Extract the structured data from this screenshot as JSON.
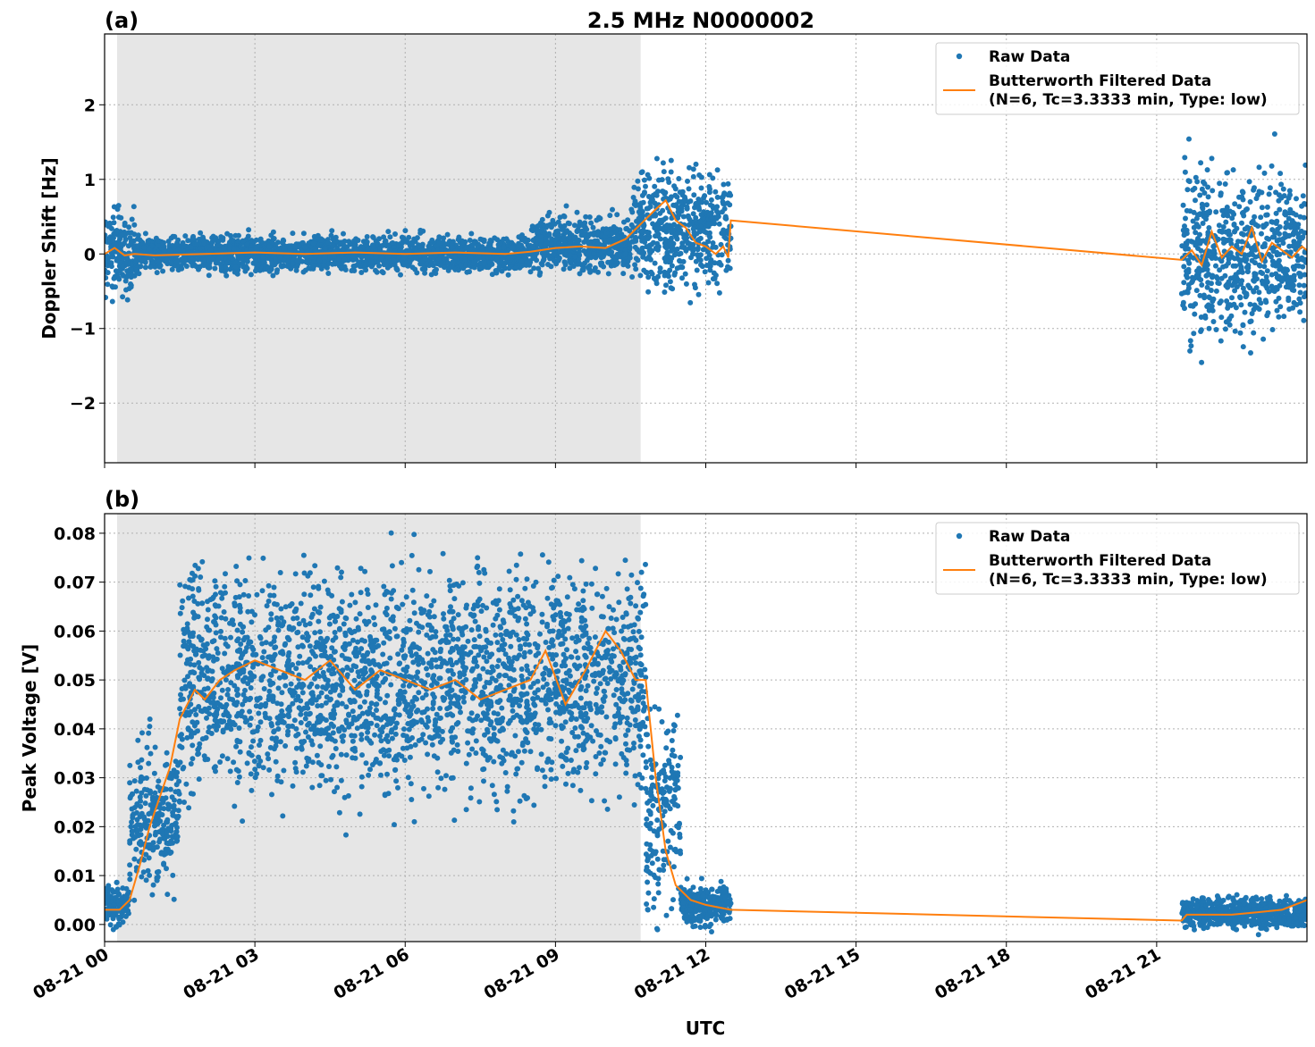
{
  "title": "2.5 MHz N0000002",
  "colors": {
    "raw": "#1f77b4",
    "filtered": "#ff7f0e",
    "shade": "#e6e6e6"
  },
  "chart_data": [
    {
      "type": "scatter",
      "panel_label": "(a)",
      "ylabel": "Doppler Shift [Hz]",
      "xlabel": "",
      "xlim": [
        0,
        24
      ],
      "ylim": [
        -2.8,
        2.95
      ],
      "yticks": [
        2,
        1,
        0,
        -1,
        -2
      ],
      "ytick_labels": [
        "2",
        "1",
        "0",
        "−1",
        "−2"
      ],
      "xticks": [
        0,
        3,
        6,
        9,
        12,
        15,
        18,
        21
      ],
      "xtick_labels": [],
      "grid": true,
      "legend_position": "top-right",
      "legend": [
        "Raw Data",
        "Butterworth Filtered Data",
        "(N=6, Tc=3.3333 min, Type: low)"
      ],
      "shaded_region": [
        0.25,
        10.7
      ],
      "raw_segments": [
        {
          "x": [
            0,
            0.6
          ],
          "center": 0.0,
          "spread": 0.55
        },
        {
          "x": [
            0.6,
            8.5
          ],
          "center": 0.0,
          "spread": 0.22
        },
        {
          "x": [
            8.5,
            10.5
          ],
          "center": 0.12,
          "spread": 0.35
        },
        {
          "x": [
            10.5,
            12.5
          ],
          "center": 0.35,
          "spread": 0.75
        },
        {
          "x": [
            21.5,
            24
          ],
          "center": 0.0,
          "spread": 1.05
        }
      ],
      "series": [
        {
          "name": "Butterworth Filtered Data",
          "x": [
            0,
            0.2,
            0.4,
            0.6,
            1,
            2,
            3,
            4,
            5,
            6,
            7,
            8,
            8.5,
            9,
            9.5,
            10,
            10.4,
            10.7,
            11,
            11.2,
            11.4,
            11.6,
            11.8,
            12,
            12.2,
            12.35,
            12.45,
            12.5,
            21.5,
            21.7,
            21.9,
            22.1,
            22.3,
            22.5,
            22.7,
            22.9,
            23.1,
            23.3,
            23.5,
            23.7,
            23.9,
            24
          ],
          "y": [
            0.0,
            0.08,
            -0.02,
            0.0,
            -0.02,
            0.0,
            0.02,
            0.0,
            0.02,
            0.0,
            0.02,
            0.0,
            0.03,
            0.08,
            0.1,
            0.08,
            0.2,
            0.4,
            0.6,
            0.72,
            0.45,
            0.35,
            0.15,
            0.1,
            0.0,
            0.1,
            -0.05,
            0.45,
            -0.08,
            0.05,
            -0.15,
            0.3,
            -0.05,
            0.1,
            0.0,
            0.35,
            -0.1,
            0.15,
            0.05,
            -0.05,
            0.1,
            0.05
          ]
        }
      ]
    },
    {
      "type": "scatter",
      "panel_label": "(b)",
      "ylabel": "Peak Voltage [V]",
      "xlabel": "UTC",
      "xlim": [
        0,
        24
      ],
      "ylim": [
        -0.0035,
        0.084
      ],
      "yticks": [
        0.08,
        0.07,
        0.06,
        0.05,
        0.04,
        0.03,
        0.02,
        0.01,
        0.0
      ],
      "ytick_labels": [
        "0.08",
        "0.07",
        "0.06",
        "0.05",
        "0.04",
        "0.03",
        "0.02",
        "0.01",
        "0.00"
      ],
      "xticks": [
        0,
        3,
        6,
        9,
        12,
        15,
        18,
        21
      ],
      "xtick_labels": [
        "08-21 00",
        "08-21 03",
        "08-21 06",
        "08-21 09",
        "08-21 12",
        "08-21 15",
        "08-21 18",
        "08-21 21"
      ],
      "grid": true,
      "legend_position": "top-right",
      "legend": [
        "Raw Data",
        "Butterworth Filtered Data",
        "(N=6, Tc=3.3333 min, Type: low)"
      ],
      "shaded_region": [
        0.25,
        10.7
      ],
      "raw_segments": [
        {
          "x": [
            0,
            0.5
          ],
          "center": 0.004,
          "spread": 0.004
        },
        {
          "x": [
            0.5,
            1.5
          ],
          "center": 0.022,
          "spread": 0.014
        },
        {
          "x": [
            1.5,
            10.8
          ],
          "center": 0.05,
          "spread": 0.022
        },
        {
          "x": [
            10.8,
            11.5
          ],
          "center": 0.022,
          "spread": 0.02
        },
        {
          "x": [
            11.5,
            12.5
          ],
          "center": 0.004,
          "spread": 0.004
        },
        {
          "x": [
            21.5,
            24
          ],
          "center": 0.0025,
          "spread": 0.003
        }
      ],
      "series": [
        {
          "name": "Butterworth Filtered Data",
          "x": [
            0,
            0.3,
            0.5,
            0.7,
            0.9,
            1.1,
            1.3,
            1.5,
            1.8,
            2,
            2.3,
            2.6,
            3,
            3.5,
            4,
            4.5,
            5,
            5.5,
            6,
            6.5,
            7,
            7.5,
            8,
            8.5,
            8.8,
            9.2,
            9.6,
            10,
            10.3,
            10.6,
            10.8,
            11,
            11.2,
            11.4,
            11.7,
            12,
            12.5,
            21.5,
            21.6,
            22,
            22.5,
            23,
            23.5,
            24
          ],
          "y": [
            0.003,
            0.003,
            0.005,
            0.012,
            0.02,
            0.026,
            0.032,
            0.042,
            0.048,
            0.046,
            0.05,
            0.052,
            0.054,
            0.052,
            0.05,
            0.054,
            0.048,
            0.052,
            0.05,
            0.048,
            0.05,
            0.046,
            0.048,
            0.05,
            0.056,
            0.045,
            0.052,
            0.06,
            0.056,
            0.05,
            0.05,
            0.03,
            0.015,
            0.008,
            0.005,
            0.004,
            0.003,
            0.0008,
            0.002,
            0.002,
            0.002,
            0.0025,
            0.003,
            0.005
          ]
        }
      ]
    }
  ]
}
